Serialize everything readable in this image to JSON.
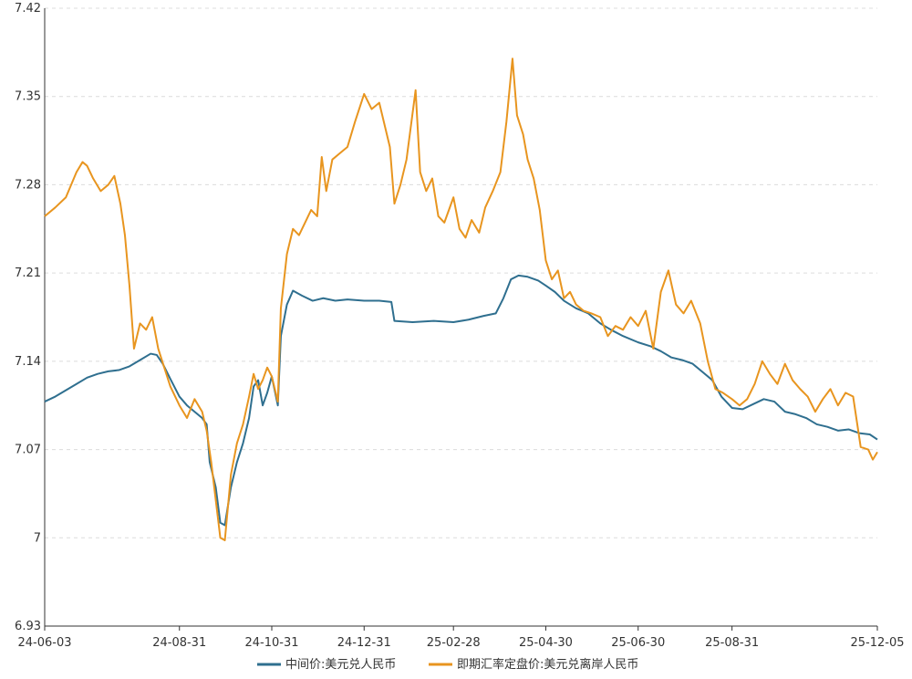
{
  "chart_data": {
    "type": "line",
    "title": "",
    "xlabel": "",
    "ylabel": "",
    "grid": "horizontal dashed",
    "legend_position": "bottom-center",
    "ylim": [
      6.93,
      7.42
    ],
    "yticks": [
      "6.93",
      "7",
      "7.07",
      "7.14",
      "7.21",
      "7.28",
      "7.35",
      "7.42"
    ],
    "xlim": [
      "2024-06-03",
      "2025-12-05"
    ],
    "xticks": [
      {
        "date": "2024-06-03",
        "label": "24-06-03"
      },
      {
        "date": "2024-08-31",
        "label": "24-08-31"
      },
      {
        "date": "2024-10-31",
        "label": "24-10-31"
      },
      {
        "date": "2024-12-31",
        "label": "24-12-31"
      },
      {
        "date": "2025-02-28",
        "label": "25-02-28"
      },
      {
        "date": "2025-04-30",
        "label": "25-04-30"
      },
      {
        "date": "2025-06-30",
        "label": "25-06-30"
      },
      {
        "date": "2025-08-31",
        "label": "25-08-31"
      },
      {
        "date": "2025-12-05",
        "label": "25-12-05"
      }
    ],
    "series": [
      {
        "name": "中间价:美元兑人民币",
        "color": "#2f6f8f",
        "points": [
          [
            "2024-06-03",
            7.108
          ],
          [
            "2024-06-10",
            7.112
          ],
          [
            "2024-06-17",
            7.117
          ],
          [
            "2024-06-24",
            7.122
          ],
          [
            "2024-07-01",
            7.127
          ],
          [
            "2024-07-08",
            7.13
          ],
          [
            "2024-07-15",
            7.132
          ],
          [
            "2024-07-22",
            7.133
          ],
          [
            "2024-07-29",
            7.136
          ],
          [
            "2024-08-05",
            7.141
          ],
          [
            "2024-08-12",
            7.146
          ],
          [
            "2024-08-16",
            7.145
          ],
          [
            "2024-08-20",
            7.138
          ],
          [
            "2024-08-25",
            7.126
          ],
          [
            "2024-08-31",
            7.112
          ],
          [
            "2024-09-05",
            7.105
          ],
          [
            "2024-09-10",
            7.1
          ],
          [
            "2024-09-15",
            7.095
          ],
          [
            "2024-09-18",
            7.09
          ],
          [
            "2024-09-20",
            7.06
          ],
          [
            "2024-09-24",
            7.04
          ],
          [
            "2024-09-27",
            7.012
          ],
          [
            "2024-09-30",
            7.01
          ],
          [
            "2024-10-04",
            7.04
          ],
          [
            "2024-10-08",
            7.06
          ],
          [
            "2024-10-12",
            7.075
          ],
          [
            "2024-10-16",
            7.095
          ],
          [
            "2024-10-19",
            7.12
          ],
          [
            "2024-10-22",
            7.125
          ],
          [
            "2024-10-25",
            7.105
          ],
          [
            "2024-10-28",
            7.115
          ],
          [
            "2024-10-31",
            7.128
          ],
          [
            "2024-11-04",
            7.105
          ],
          [
            "2024-11-06",
            7.16
          ],
          [
            "2024-11-10",
            7.185
          ],
          [
            "2024-11-14",
            7.196
          ],
          [
            "2024-11-20",
            7.192
          ],
          [
            "2024-11-27",
            7.188
          ],
          [
            "2024-12-04",
            7.19
          ],
          [
            "2024-12-12",
            7.188
          ],
          [
            "2024-12-20",
            7.189
          ],
          [
            "2024-12-31",
            7.188
          ],
          [
            "2025-01-10",
            7.188
          ],
          [
            "2025-01-18",
            7.187
          ],
          [
            "2025-01-20",
            7.172
          ],
          [
            "2025-02-01",
            7.171
          ],
          [
            "2025-02-15",
            7.172
          ],
          [
            "2025-02-28",
            7.171
          ],
          [
            "2025-03-10",
            7.173
          ],
          [
            "2025-03-20",
            7.176
          ],
          [
            "2025-03-28",
            7.178
          ],
          [
            "2025-04-02",
            7.19
          ],
          [
            "2025-04-07",
            7.205
          ],
          [
            "2025-04-12",
            7.208
          ],
          [
            "2025-04-18",
            7.207
          ],
          [
            "2025-04-25",
            7.204
          ],
          [
            "2025-04-30",
            7.2
          ],
          [
            "2025-05-06",
            7.195
          ],
          [
            "2025-05-12",
            7.188
          ],
          [
            "2025-05-20",
            7.182
          ],
          [
            "2025-05-28",
            7.178
          ],
          [
            "2025-06-05",
            7.17
          ],
          [
            "2025-06-12",
            7.165
          ],
          [
            "2025-06-20",
            7.16
          ],
          [
            "2025-06-30",
            7.155
          ],
          [
            "2025-07-08",
            7.152
          ],
          [
            "2025-07-15",
            7.148
          ],
          [
            "2025-07-22",
            7.143
          ],
          [
            "2025-07-29",
            7.141
          ],
          [
            "2025-08-05",
            7.138
          ],
          [
            "2025-08-12",
            7.131
          ],
          [
            "2025-08-18",
            7.125
          ],
          [
            "2025-08-24",
            7.112
          ],
          [
            "2025-08-31",
            7.103
          ],
          [
            "2025-09-07",
            7.102
          ],
          [
            "2025-09-14",
            7.106
          ],
          [
            "2025-09-21",
            7.11
          ],
          [
            "2025-09-28",
            7.108
          ],
          [
            "2025-10-05",
            7.1
          ],
          [
            "2025-10-12",
            7.098
          ],
          [
            "2025-10-19",
            7.095
          ],
          [
            "2025-10-26",
            7.09
          ],
          [
            "2025-11-02",
            7.088
          ],
          [
            "2025-11-09",
            7.085
          ],
          [
            "2025-11-16",
            7.086
          ],
          [
            "2025-11-23",
            7.083
          ],
          [
            "2025-11-30",
            7.082
          ],
          [
            "2025-12-05",
            7.078
          ]
        ]
      },
      {
        "name": "即期汇率定盘价:美元兑离岸人民币",
        "color": "#e8951f",
        "points": [
          [
            "2024-06-03",
            7.255
          ],
          [
            "2024-06-10",
            7.262
          ],
          [
            "2024-06-17",
            7.27
          ],
          [
            "2024-06-24",
            7.29
          ],
          [
            "2024-06-28",
            7.298
          ],
          [
            "2024-07-01",
            7.295
          ],
          [
            "2024-07-05",
            7.285
          ],
          [
            "2024-07-10",
            7.275
          ],
          [
            "2024-07-15",
            7.28
          ],
          [
            "2024-07-19",
            7.287
          ],
          [
            "2024-07-23",
            7.265
          ],
          [
            "2024-07-26",
            7.24
          ],
          [
            "2024-07-29",
            7.2
          ],
          [
            "2024-08-01",
            7.15
          ],
          [
            "2024-08-05",
            7.17
          ],
          [
            "2024-08-09",
            7.165
          ],
          [
            "2024-08-13",
            7.175
          ],
          [
            "2024-08-17",
            7.15
          ],
          [
            "2024-08-21",
            7.135
          ],
          [
            "2024-08-25",
            7.12
          ],
          [
            "2024-08-31",
            7.105
          ],
          [
            "2024-09-05",
            7.095
          ],
          [
            "2024-09-10",
            7.11
          ],
          [
            "2024-09-15",
            7.1
          ],
          [
            "2024-09-18",
            7.085
          ],
          [
            "2024-09-21",
            7.06
          ],
          [
            "2024-09-24",
            7.03
          ],
          [
            "2024-09-27",
            7.0
          ],
          [
            "2024-09-30",
            6.998
          ],
          [
            "2024-10-04",
            7.05
          ],
          [
            "2024-10-08",
            7.075
          ],
          [
            "2024-10-12",
            7.09
          ],
          [
            "2024-10-16",
            7.112
          ],
          [
            "2024-10-19",
            7.13
          ],
          [
            "2024-10-22",
            7.118
          ],
          [
            "2024-10-25",
            7.125
          ],
          [
            "2024-10-28",
            7.135
          ],
          [
            "2024-10-31",
            7.128
          ],
          [
            "2024-11-04",
            7.108
          ],
          [
            "2024-11-06",
            7.182
          ],
          [
            "2024-11-10",
            7.225
          ],
          [
            "2024-11-14",
            7.245
          ],
          [
            "2024-11-18",
            7.24
          ],
          [
            "2024-11-22",
            7.25
          ],
          [
            "2024-11-26",
            7.26
          ],
          [
            "2024-11-30",
            7.255
          ],
          [
            "2024-12-03",
            7.302
          ],
          [
            "2024-12-06",
            7.275
          ],
          [
            "2024-12-10",
            7.3
          ],
          [
            "2024-12-15",
            7.305
          ],
          [
            "2024-12-20",
            7.31
          ],
          [
            "2024-12-25",
            7.33
          ],
          [
            "2024-12-31",
            7.352
          ],
          [
            "2025-01-05",
            7.34
          ],
          [
            "2025-01-10",
            7.345
          ],
          [
            "2025-01-13",
            7.33
          ],
          [
            "2025-01-17",
            7.31
          ],
          [
            "2025-01-20",
            7.265
          ],
          [
            "2025-01-24",
            7.28
          ],
          [
            "2025-01-28",
            7.3
          ],
          [
            "2025-02-03",
            7.355
          ],
          [
            "2025-02-06",
            7.29
          ],
          [
            "2025-02-10",
            7.275
          ],
          [
            "2025-02-14",
            7.285
          ],
          [
            "2025-02-18",
            7.255
          ],
          [
            "2025-02-22",
            7.25
          ],
          [
            "2025-02-28",
            7.27
          ],
          [
            "2025-03-04",
            7.245
          ],
          [
            "2025-03-08",
            7.238
          ],
          [
            "2025-03-12",
            7.252
          ],
          [
            "2025-03-17",
            7.242
          ],
          [
            "2025-03-21",
            7.262
          ],
          [
            "2025-03-26",
            7.275
          ],
          [
            "2025-03-31",
            7.29
          ],
          [
            "2025-04-04",
            7.33
          ],
          [
            "2025-04-08",
            7.38
          ],
          [
            "2025-04-11",
            7.335
          ],
          [
            "2025-04-15",
            7.32
          ],
          [
            "2025-04-18",
            7.3
          ],
          [
            "2025-04-22",
            7.285
          ],
          [
            "2025-04-26",
            7.26
          ],
          [
            "2025-04-30",
            7.22
          ],
          [
            "2025-05-04",
            7.205
          ],
          [
            "2025-05-08",
            7.212
          ],
          [
            "2025-05-12",
            7.19
          ],
          [
            "2025-05-16",
            7.195
          ],
          [
            "2025-05-20",
            7.185
          ],
          [
            "2025-05-25",
            7.18
          ],
          [
            "2025-05-30",
            7.178
          ],
          [
            "2025-06-05",
            7.175
          ],
          [
            "2025-06-10",
            7.16
          ],
          [
            "2025-06-15",
            7.168
          ],
          [
            "2025-06-20",
            7.165
          ],
          [
            "2025-06-25",
            7.175
          ],
          [
            "2025-06-30",
            7.168
          ],
          [
            "2025-07-05",
            7.18
          ],
          [
            "2025-07-10",
            7.15
          ],
          [
            "2025-07-15",
            7.195
          ],
          [
            "2025-07-20",
            7.212
          ],
          [
            "2025-07-25",
            7.185
          ],
          [
            "2025-07-30",
            7.178
          ],
          [
            "2025-08-04",
            7.188
          ],
          [
            "2025-08-10",
            7.17
          ],
          [
            "2025-08-15",
            7.14
          ],
          [
            "2025-08-20",
            7.118
          ],
          [
            "2025-08-25",
            7.115
          ],
          [
            "2025-08-31",
            7.11
          ],
          [
            "2025-09-05",
            7.105
          ],
          [
            "2025-09-10",
            7.11
          ],
          [
            "2025-09-15",
            7.122
          ],
          [
            "2025-09-20",
            7.14
          ],
          [
            "2025-09-25",
            7.13
          ],
          [
            "2025-09-30",
            7.122
          ],
          [
            "2025-10-05",
            7.138
          ],
          [
            "2025-10-10",
            7.125
          ],
          [
            "2025-10-15",
            7.118
          ],
          [
            "2025-10-20",
            7.112
          ],
          [
            "2025-10-25",
            7.1
          ],
          [
            "2025-10-30",
            7.11
          ],
          [
            "2025-11-04",
            7.118
          ],
          [
            "2025-11-09",
            7.105
          ],
          [
            "2025-11-14",
            7.115
          ],
          [
            "2025-11-19",
            7.112
          ],
          [
            "2025-11-24",
            7.072
          ],
          [
            "2025-11-29",
            7.07
          ],
          [
            "2025-12-02",
            7.062
          ],
          [
            "2025-12-05",
            7.068
          ]
        ]
      }
    ]
  }
}
